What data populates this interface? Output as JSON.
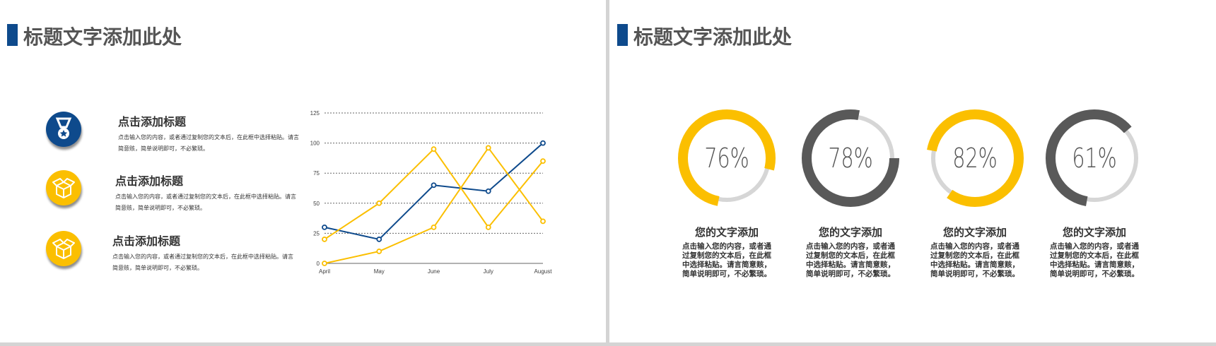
{
  "left_slide": {
    "title": "标题文字添加此处",
    "items": [
      {
        "icon": "medal-icon",
        "heading": "点击添加标题",
        "body": "点击输入您的内容，或者通过复制您的文本后，在此框中选择粘贴。请言简意赅，简单说明即可，不必繁琐。"
      },
      {
        "icon": "box-icon",
        "heading": "点击添加标题",
        "body": "点击输入您的内容，或者通过复制您的文本后，在此框中选择粘贴。请言简意赅，简单说明即可，不必繁琐。"
      },
      {
        "icon": "box-icon",
        "heading": "点击添加标题",
        "body": "点击输入您的内容，或者通过复制您的文本后，在此框中选择粘贴。请言简意赅，简单说明即可，不必繁琐。"
      }
    ]
  },
  "chart_data": {
    "type": "line",
    "categories": [
      "April",
      "May",
      "June",
      "July",
      "August"
    ],
    "ylim": [
      0,
      125
    ],
    "yticks": [
      0,
      25,
      50,
      75,
      100,
      125
    ],
    "grid": true,
    "series": [
      {
        "name": "series-blue",
        "color": "#0e4a8c",
        "values": [
          30,
          20,
          65,
          60,
          100
        ]
      },
      {
        "name": "series-yellow-1",
        "color": "#fbbf00",
        "values": [
          20,
          50,
          95,
          30,
          85
        ]
      },
      {
        "name": "series-yellow-2",
        "color": "#fbbf00",
        "values": [
          0,
          10,
          30,
          96,
          35
        ]
      }
    ]
  },
  "right_slide": {
    "title": "标题文字添加此处",
    "rings": [
      {
        "percent": 76,
        "label": "76%",
        "color": "#fbbf00",
        "heading": "您的文字添加",
        "body": "点击输入您的内容，或者通过复制您的文本后，在此框中选择粘贴。请言简意赅，简单说明即可，不必繁琐。"
      },
      {
        "percent": 78,
        "label": "78%",
        "color": "#595959",
        "heading": "您的文字添加",
        "body": "点击输入您的内容，或者通过复制您的文本后，在此框中选择粘贴。请言简意赅，简单说明即可，不必繁琐。"
      },
      {
        "percent": 82,
        "label": "82%",
        "color": "#fbbf00",
        "heading": "您的文字添加",
        "body": "点击输入您的内容，或者通过复制您的文本后，在此框中选择粘贴。请言简意赅，简单说明即可，不必繁琐。"
      },
      {
        "percent": 61,
        "label": "61%",
        "color": "#595959",
        "heading": "您的文字添加",
        "body": "点击输入您的内容，或者通过复制您的文本后，在此框中选择粘贴。请言简意赅，简单说明即可，不必繁琐。"
      }
    ],
    "track_color": "#d6d6d6"
  }
}
